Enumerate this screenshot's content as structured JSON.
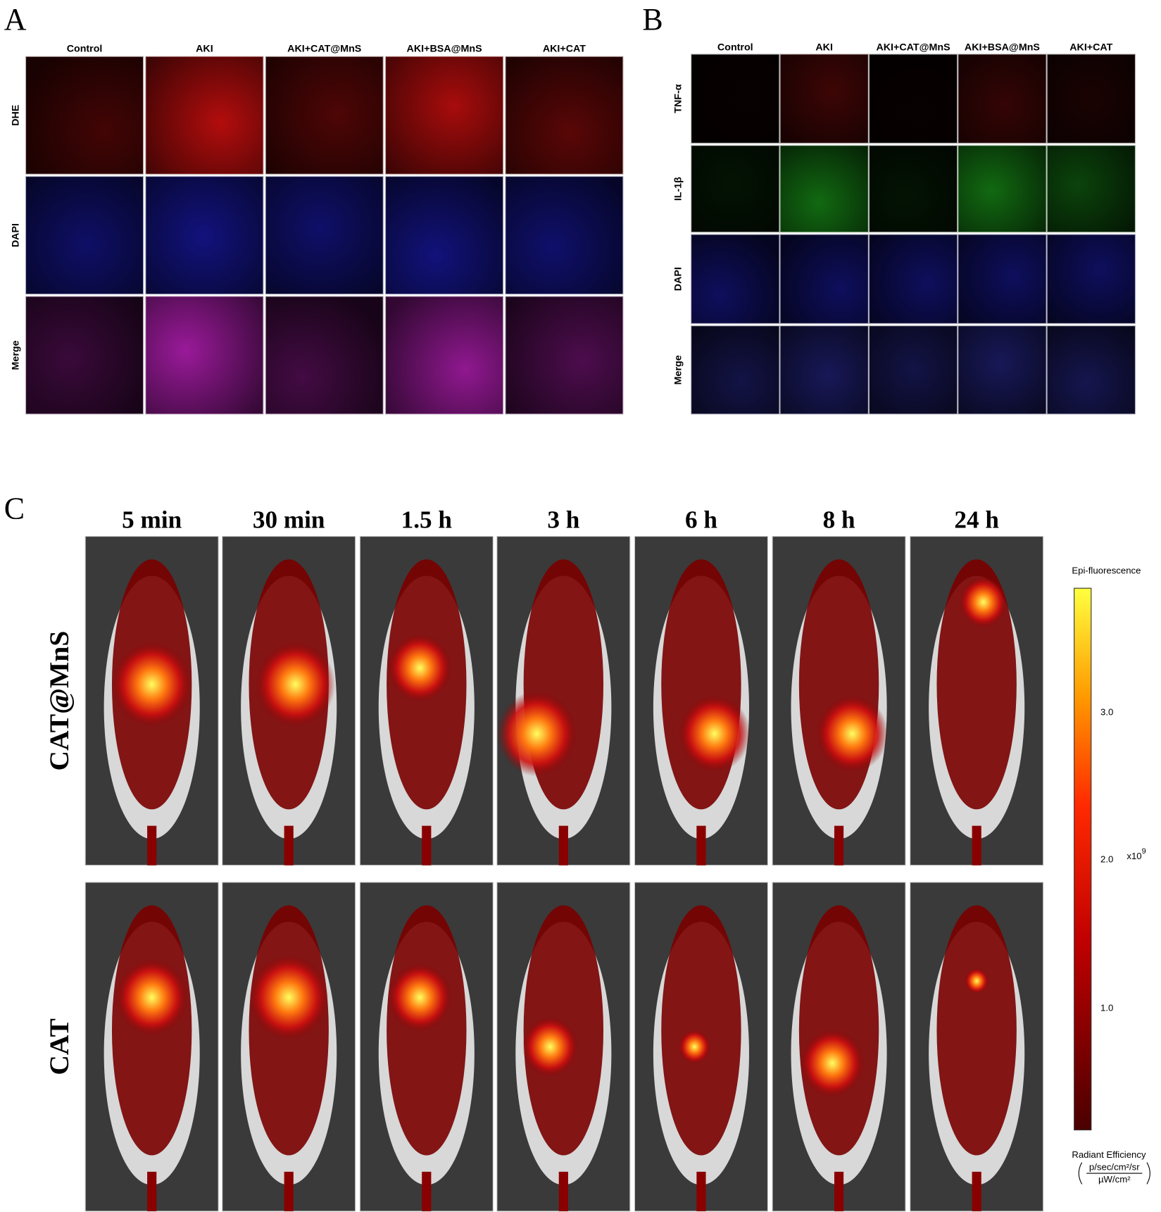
{
  "panel_a": {
    "label": "A",
    "columns": [
      "Control",
      "AKI",
      "AKI+CAT@MnS",
      "AKI+BSA@MnS",
      "AKI+CAT"
    ],
    "rows": [
      "DHE",
      "DAPI",
      "Merge"
    ]
  },
  "panel_b": {
    "label": "B",
    "columns": [
      "Control",
      "AKI",
      "AKI+CAT@MnS",
      "AKI+BSA@MnS",
      "AKI+CAT"
    ],
    "rows": [
      "TNF-α",
      "IL-1β",
      "DAPI",
      "Merge"
    ]
  },
  "panel_c": {
    "label": "C",
    "timepoints": [
      "5 min",
      "30 min",
      "1.5 h",
      "3 h",
      "6 h",
      "8 h",
      "24 h"
    ],
    "rows": [
      "CAT@MnS",
      "CAT"
    ],
    "colorbar": {
      "title": "Epi-fluorescence",
      "ticks": [
        "3.0",
        "2.0",
        "1.0"
      ],
      "multiplier_base": "x10",
      "multiplier_exponent": "9",
      "quantity": "Radiant Efficiency",
      "units_numerator": "p/sec/cm²/sr",
      "units_denominator": "µW/cm²"
    }
  }
}
